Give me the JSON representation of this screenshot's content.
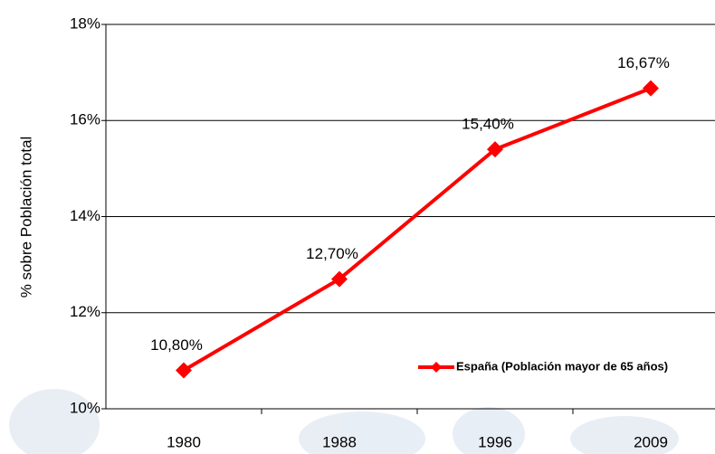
{
  "chart_data": {
    "type": "line",
    "y_label": "% sobre Población total",
    "categories": [
      "1980",
      "1988",
      "1996",
      "2009"
    ],
    "series": [
      {
        "name": "España (Población mayor de 65 años)",
        "color": "#ff0000",
        "values": [
          10.8,
          12.7,
          15.4,
          16.67
        ],
        "value_labels": [
          "10,80%",
          "12,70%",
          "15,40%",
          "16,67%"
        ]
      }
    ],
    "ylim": [
      10,
      18
    ],
    "yticks": [
      {
        "value": 10,
        "label": "10%"
      },
      {
        "value": 12,
        "label": "12%"
      },
      {
        "value": 14,
        "label": "14%"
      },
      {
        "value": 16,
        "label": "16%"
      },
      {
        "value": 18,
        "label": "18%"
      }
    ],
    "grid": true,
    "legend": "lower-right"
  }
}
